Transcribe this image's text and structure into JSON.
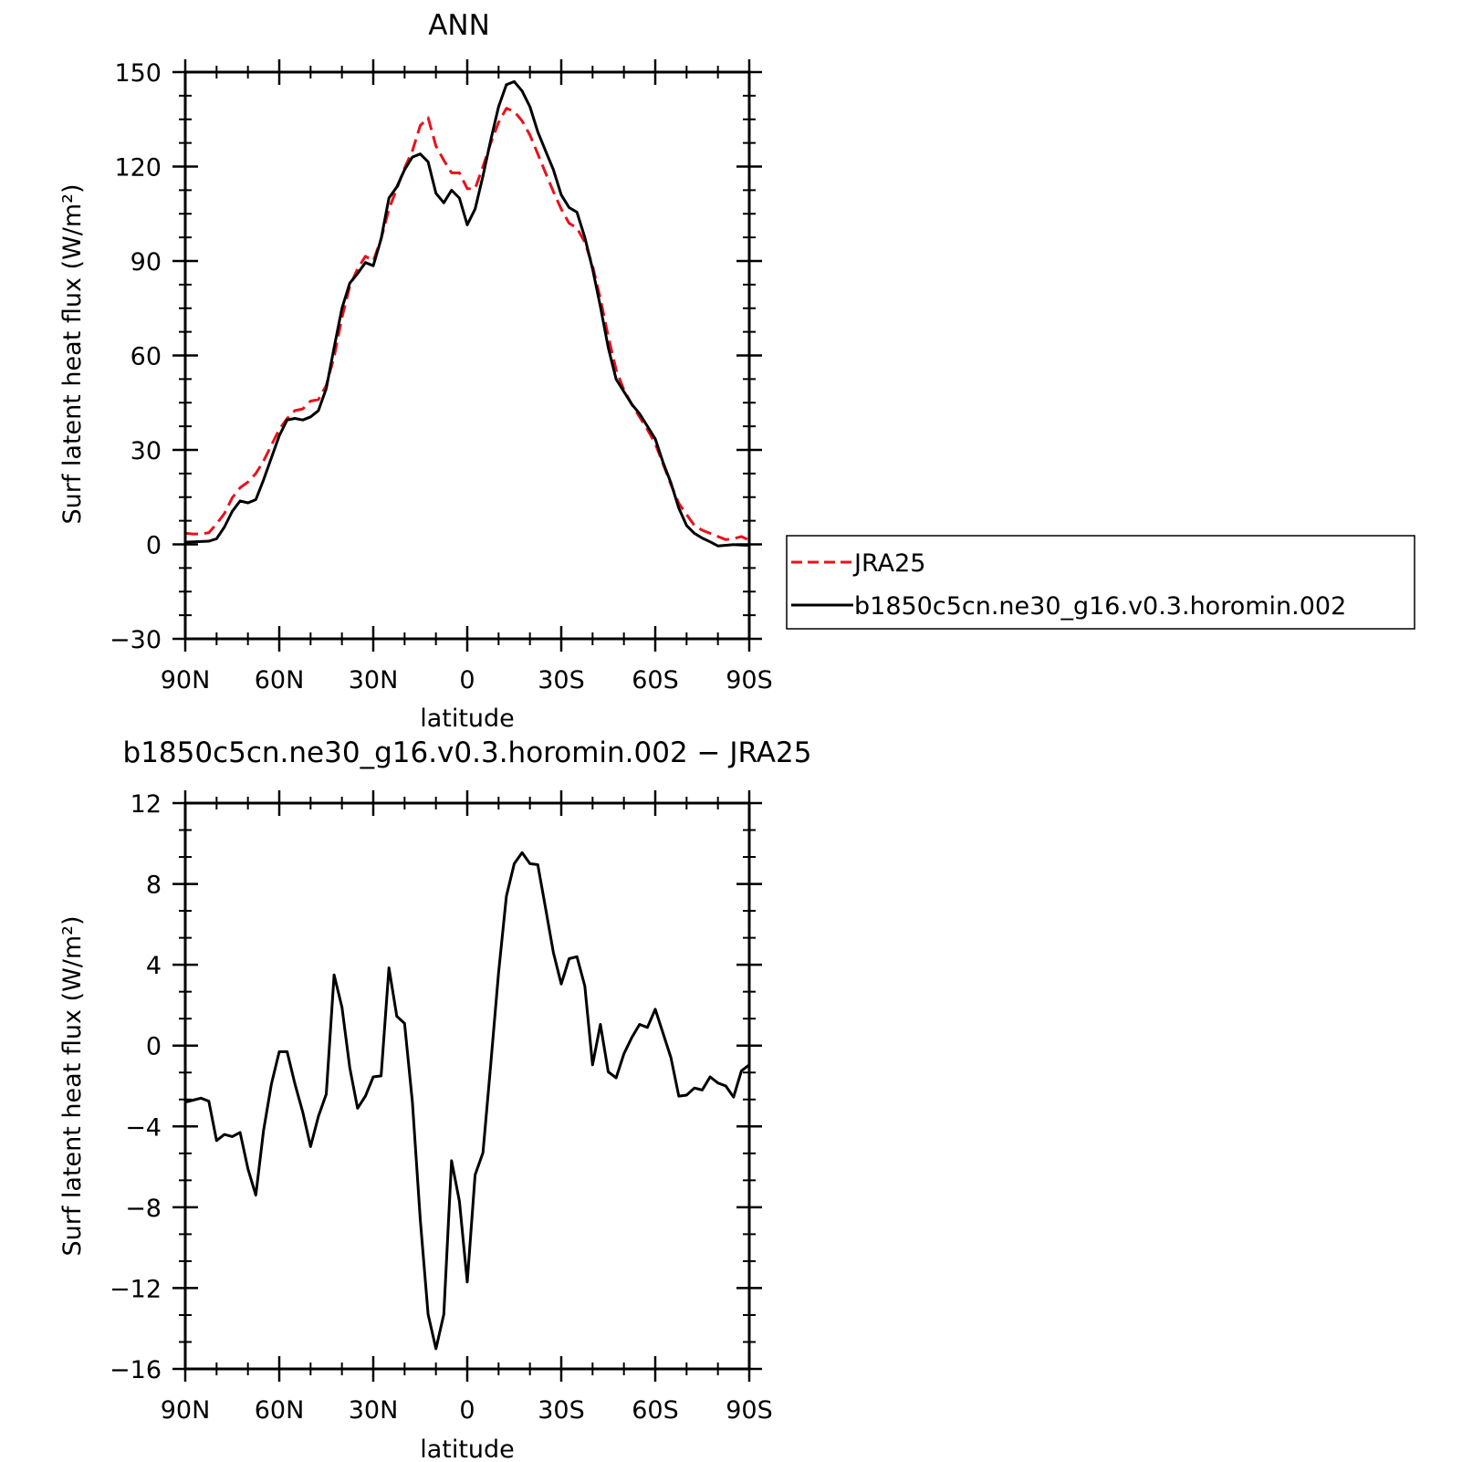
{
  "chart_data": [
    {
      "type": "line",
      "title": "ANN",
      "xlabel": "latitude",
      "ylabel": "Surf latent heat flux (W/m²)",
      "x_ticklabels": [
        "90N",
        "60N",
        "30N",
        "0",
        "30S",
        "60S",
        "90S"
      ],
      "y_ticklabels": [
        "−30",
        "0",
        "30",
        "60",
        "90",
        "120",
        "150"
      ],
      "xlim": [
        90,
        -90
      ],
      "ylim": [
        -30,
        150
      ],
      "grid": false,
      "legend": {
        "position": "right",
        "entries": [
          "JRA25",
          "b1850c5cn.ne30_g16.v0.3.horomin.002"
        ]
      },
      "x": [
        90,
        87.5,
        85,
        82.5,
        80,
        77.5,
        75,
        72.5,
        70,
        67.5,
        65,
        62.5,
        60,
        57.5,
        55,
        52.5,
        50,
        47.5,
        45,
        42.5,
        40,
        37.5,
        35,
        32.5,
        30,
        27.5,
        25,
        22.5,
        20,
        17.5,
        15,
        12.5,
        10,
        7.5,
        5,
        2.5,
        0,
        -2.5,
        -5,
        -7.5,
        -10,
        -12.5,
        -15,
        -17.5,
        -20,
        -22.5,
        -25,
        -27.5,
        -30,
        -32.5,
        -35,
        -37.5,
        -40,
        -42.5,
        -45,
        -47.5,
        -50,
        -52.5,
        -55,
        -57.5,
        -60,
        -62.5,
        -65,
        -67.5,
        -70,
        -72.5,
        -75,
        -77.5,
        -80,
        -82.5,
        -85,
        -87.5,
        -90
      ],
      "series": [
        {
          "name": "JRA25",
          "color": "#e8111a",
          "dash": "dashed",
          "values": [
            3.5,
            3.3,
            3.3,
            3.7,
            6.5,
            9.8,
            14.8,
            18.0,
            19.8,
            22.5,
            26.5,
            31.5,
            36.5,
            40.0,
            42.5,
            43.0,
            45.5,
            46.0,
            50.5,
            59.5,
            72.0,
            82.0,
            87.5,
            91.5,
            90.0,
            97.0,
            106.5,
            113.0,
            119.5,
            125.0,
            133.0,
            135.5,
            126.5,
            122.0,
            118.0,
            118.0,
            113.0,
            113.0,
            120.0,
            127.5,
            134.0,
            138.5,
            137.5,
            134.5,
            130.0,
            124.0,
            118.0,
            112.0,
            106.5,
            102.0,
            100.5,
            96.0,
            88.5,
            78.0,
            66.0,
            55.5,
            49.0,
            44.5,
            40.5,
            36.5,
            32.0,
            25.5,
            19.0,
            13.0,
            9.5,
            6.0,
            4.5,
            3.5,
            2.5,
            1.5,
            1.8,
            2.5,
            1.3
          ]
        },
        {
          "name": "b1850c5cn.ne30_g16.v0.3.horomin.002",
          "color": "#000000",
          "dash": "solid",
          "values": [
            0.7,
            0.8,
            0.9,
            1.0,
            1.8,
            5.5,
            10.5,
            13.8,
            13.2,
            14.2,
            20.5,
            27.5,
            34.5,
            39.5,
            40.0,
            39.5,
            40.5,
            42.5,
            49.5,
            62.5,
            75.0,
            83.0,
            86.0,
            89.5,
            88.5,
            97.0,
            110.0,
            113.5,
            119.0,
            123.0,
            124.0,
            121.5,
            111.5,
            108.5,
            112.5,
            110.0,
            101.5,
            106.5,
            117.0,
            128.5,
            139.0,
            146.0,
            147.0,
            144.0,
            139.0,
            131.0,
            125.0,
            119.0,
            111.0,
            107.0,
            105.5,
            97.5,
            87.5,
            75.5,
            62.5,
            52.5,
            48.5,
            44.5,
            41.5,
            37.5,
            33.5,
            26.0,
            19.5,
            11.5,
            6.0,
            3.5,
            2.0,
            0.8,
            -0.5,
            -0.3,
            -0.1,
            -0.2,
            -0.3
          ]
        }
      ]
    },
    {
      "type": "line",
      "title": "b1850c5cn.ne30_g16.v0.3.horomin.002 − JRA25",
      "xlabel": "latitude",
      "ylabel": "Surf latent heat flux (W/m²)",
      "x_ticklabels": [
        "90N",
        "60N",
        "30N",
        "0",
        "30S",
        "60S",
        "90S"
      ],
      "y_ticklabels": [
        "−16",
        "−12",
        "−8",
        "−4",
        "0",
        "4",
        "8",
        "12"
      ],
      "xlim": [
        90,
        -90
      ],
      "ylim": [
        -16,
        12
      ],
      "grid": false,
      "x": [
        90,
        87.5,
        85,
        82.5,
        80,
        77.5,
        75,
        72.5,
        70,
        67.5,
        65,
        62.5,
        60,
        57.5,
        55,
        52.5,
        50,
        47.5,
        45,
        42.5,
        40,
        37.5,
        35,
        32.5,
        30,
        27.5,
        25,
        22.5,
        20,
        17.5,
        15,
        12.5,
        10,
        7.5,
        5,
        2.5,
        0,
        -2.5,
        -5,
        -7.5,
        -10,
        -12.5,
        -15,
        -17.5,
        -20,
        -22.5,
        -25,
        -27.5,
        -30,
        -32.5,
        -35,
        -37.5,
        -40,
        -42.5,
        -45,
        -47.5,
        -50,
        -52.5,
        -55,
        -57.5,
        -60,
        -62.5,
        -65,
        -67.5,
        -70,
        -72.5,
        -75,
        -77.5,
        -80,
        -82.5,
        -85,
        -87.5,
        -90
      ],
      "series": [
        {
          "name": "",
          "color": "#000000",
          "dash": "solid",
          "values": [
            -2.8,
            -2.7,
            -2.6,
            -2.75,
            -4.7,
            -4.4,
            -4.5,
            -4.3,
            -6.1,
            -7.4,
            -4.2,
            -1.9,
            -0.3,
            -0.3,
            -1.9,
            -3.3,
            -5.0,
            -3.5,
            -2.4,
            3.5,
            1.9,
            -1.1,
            -3.1,
            -2.5,
            -1.55,
            -1.5,
            3.85,
            1.45,
            1.1,
            -2.8,
            -8.6,
            -13.3,
            -15.0,
            -13.3,
            -5.7,
            -7.7,
            -11.7,
            -6.4,
            -5.3,
            -0.9,
            3.6,
            7.4,
            9.0,
            9.55,
            9.0,
            8.95,
            6.8,
            4.6,
            3.05,
            4.3,
            4.4,
            2.95,
            -0.95,
            1.05,
            -1.3,
            -1.6,
            -0.4,
            0.4,
            1.05,
            0.9,
            1.8,
            0.6,
            -0.6,
            -2.5,
            -2.45,
            -2.1,
            -2.2,
            -1.55,
            -1.85,
            -2.0,
            -2.55,
            -1.25,
            -0.95
          ]
        }
      ]
    }
  ]
}
